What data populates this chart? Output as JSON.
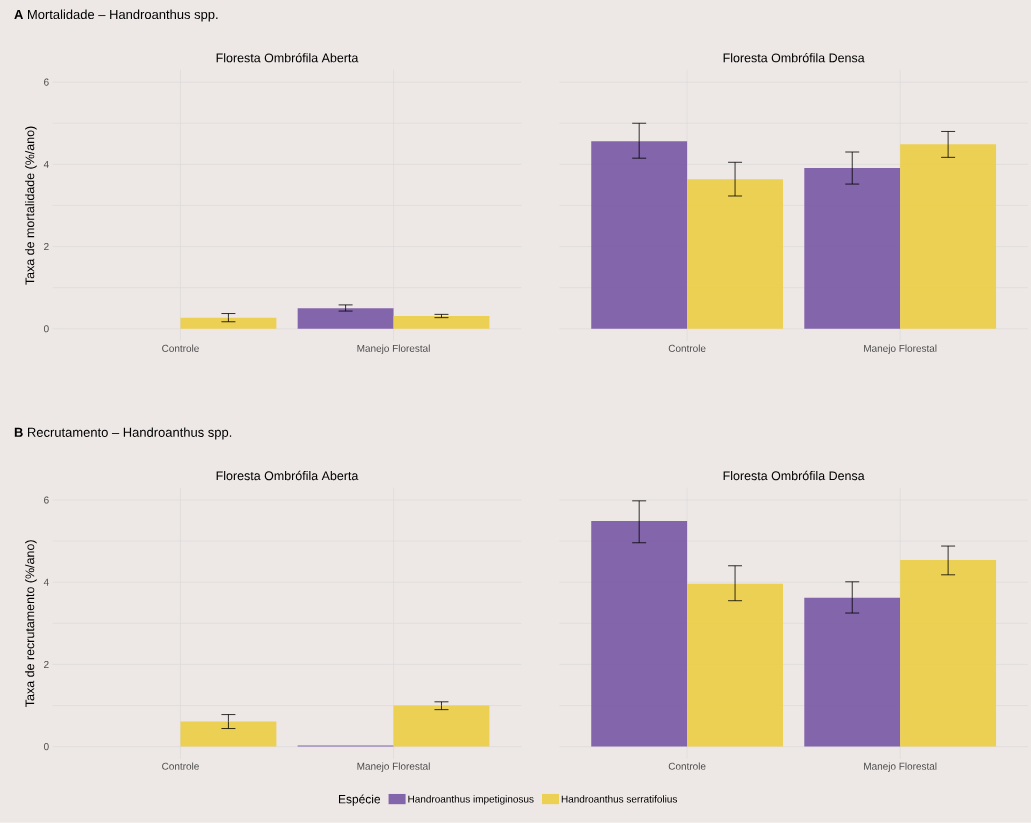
{
  "chart_data": [
    {
      "type": "bar",
      "title": "**A** Mortalidade – Handroanthus spp.",
      "subtitle": "Floresta Ombrófila Aberta",
      "ylabel": "Taxa de mortalidade (%/ano)",
      "categories": [
        "Controle",
        "Manejo Florestal"
      ],
      "ylim": [
        -0.3,
        6.3
      ],
      "yticks": [
        0,
        {
          "value": 1,
          "label": null
        },
        2,
        {
          "value": 3,
          "label": null
        },
        4,
        {
          "value": 5,
          "label": null
        },
        6
      ],
      "grid": true,
      "series": [
        {
          "color": "#7b5aa6",
          "values": [
            null,
            0.5
          ],
          "errors": [
            null,
            [
              0.43,
              0.58
            ]
          ]
        },
        {
          "color": "#ecce47",
          "values": [
            0.27,
            0.31
          ],
          "errors": [
            [
              0.17,
              0.37
            ],
            [
              0.27,
              0.35
            ]
          ]
        }
      ]
    },
    {
      "type": "bar",
      "subtitle": "Floresta Ombrófila Densa",
      "categories": [
        "Controle",
        "Manejo Florestal"
      ],
      "ylim": [
        -0.3,
        6.3
      ],
      "yticks": [
        0,
        {
          "value": 1,
          "label": null
        },
        2,
        {
          "value": 3,
          "label": null
        },
        4,
        {
          "value": 5,
          "label": null
        },
        6
      ],
      "grid": true,
      "tick_labels": "x",
      "series": [
        {
          "color": "#7b5aa6",
          "values": [
            4.56,
            3.91
          ],
          "errors": [
            [
              4.15,
              5.0
            ],
            [
              3.52,
              4.3
            ]
          ]
        },
        {
          "color": "#ecce47",
          "values": [
            3.64,
            4.49
          ],
          "errors": [
            [
              3.23,
              4.05
            ],
            [
              4.17,
              4.8
            ]
          ]
        }
      ]
    },
    {
      "type": "bar",
      "title": "**B** Recrutamento – Handroanthus spp.",
      "subtitle": "Floresta Ombrófila Aberta",
      "ylabel": "Taxa de recrutamento (%/ano)",
      "categories": [
        "Controle",
        "Manejo Florestal"
      ],
      "ylim": [
        -0.3,
        6.3
      ],
      "yticks": [
        0,
        {
          "value": 1,
          "label": null
        },
        2,
        {
          "value": 3,
          "label": null
        },
        4,
        {
          "value": 5,
          "label": null
        },
        6
      ],
      "grid": true,
      "series": [
        {
          "color": "#7b5aa6",
          "values": [
            null,
            0.03
          ],
          "errors": [
            null,
            null
          ]
        },
        {
          "color": "#ecce47",
          "values": [
            0.61,
            1.0
          ],
          "errors": [
            [
              0.44,
              0.78
            ],
            [
              0.9,
              1.09
            ]
          ]
        }
      ]
    },
    {
      "type": "bar",
      "subtitle": "Floresta Ombrófila Densa",
      "categories": [
        "Controle",
        "Manejo Florestal"
      ],
      "ylim": [
        -0.3,
        6.3
      ],
      "yticks": [
        0,
        {
          "value": 1,
          "label": null
        },
        2,
        {
          "value": 3,
          "label": null
        },
        4,
        {
          "value": 5,
          "label": null
        },
        6
      ],
      "grid": true,
      "tick_labels": "x",
      "legend": "bottom",
      "legend_title": "Espécie",
      "series": [
        {
          "name": "Handroanthus impetiginosus",
          "color": "#7b5aa6",
          "values": [
            5.49,
            3.62
          ],
          "errors": [
            [
              4.96,
              5.98
            ],
            [
              3.25,
              4.01
            ]
          ]
        },
        {
          "name": "Handroanthus serratifolius",
          "color": "#ecce47",
          "values": [
            3.96,
            4.54
          ],
          "errors": [
            [
              3.55,
              4.4
            ],
            [
              4.18,
              4.88
            ]
          ]
        }
      ]
    }
  ]
}
